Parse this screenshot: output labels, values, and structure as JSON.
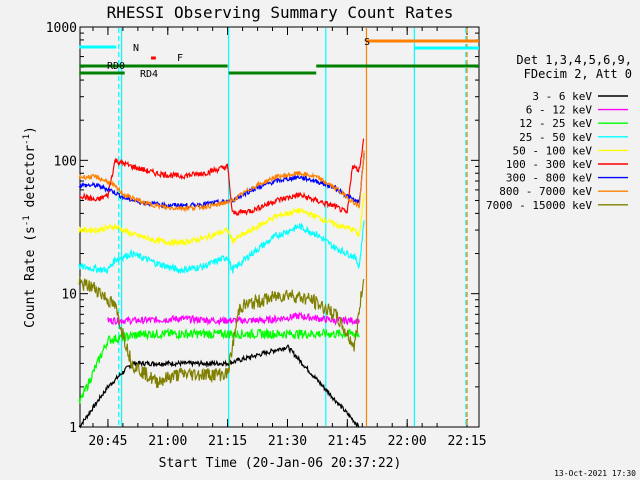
{
  "chart_data": {
    "type": "line",
    "title": "RHESSI Observing Summary Count Rates",
    "xlabel": "Start Time (20-Jan-06 20:37:22)",
    "ylabel": "Count Rate (s⁻¹ detector⁻¹)",
    "ylabel_main": "Count Rate (s",
    "ylabel_sup1": "-1",
    "ylabel_mid": " detector",
    "ylabel_sup2": "-1",
    "ylabel_end": ")",
    "yscale": "log",
    "xlim_minutes": [
      20.6333,
      22.3
    ],
    "ylim": [
      1,
      1000
    ],
    "x_ticks": [
      {
        "label": "20:45",
        "hours": 20.75
      },
      {
        "label": "21:00",
        "hours": 21.0
      },
      {
        "label": "21:15",
        "hours": 21.25
      },
      {
        "label": "21:30",
        "hours": 21.5
      },
      {
        "label": "21:45",
        "hours": 21.75
      },
      {
        "label": "22:00",
        "hours": 22.0
      },
      {
        "label": "22:15",
        "hours": 22.25
      }
    ],
    "y_ticks": [
      {
        "label": "1",
        "value": 1
      },
      {
        "label": "10",
        "value": 10
      },
      {
        "label": "100",
        "value": 100
      },
      {
        "label": "1000",
        "value": 1000
      }
    ],
    "legend_title_1": "Det 1,3,4,5,6,9,",
    "legend_title_2": "FDecim 2, Att 0",
    "legend_placement": "right",
    "series": [
      {
        "name": "3 - 6 keV",
        "color": "#000000",
        "points": [
          [
            20.63,
            1
          ],
          [
            20.75,
            2
          ],
          [
            20.85,
            3
          ],
          [
            21.0,
            3
          ],
          [
            21.25,
            3
          ],
          [
            21.5,
            4
          ],
          [
            21.65,
            2
          ],
          [
            21.8,
            1
          ]
        ]
      },
      {
        "name": "6 - 12 keV",
        "color": "#ff00ff",
        "points": [
          [
            20.75,
            6.3
          ],
          [
            20.9,
            6.3
          ],
          [
            21.05,
            6.5
          ],
          [
            21.2,
            6.3
          ],
          [
            21.4,
            6.3
          ],
          [
            21.55,
            6.8
          ],
          [
            21.7,
            6.3
          ],
          [
            21.8,
            6.3
          ]
        ]
      },
      {
        "name": "12 - 25 keV",
        "color": "#00ff00",
        "points": [
          [
            20.63,
            1.5
          ],
          [
            20.75,
            4.5
          ],
          [
            20.9,
            5
          ],
          [
            21.1,
            5
          ],
          [
            21.3,
            5
          ],
          [
            21.5,
            5
          ],
          [
            21.7,
            5
          ],
          [
            21.8,
            5
          ]
        ]
      },
      {
        "name": "25 - 50 keV",
        "color": "#00ffff",
        "points": [
          [
            20.63,
            16
          ],
          [
            20.75,
            15
          ],
          [
            20.78,
            18
          ],
          [
            20.85,
            20
          ],
          [
            20.95,
            17
          ],
          [
            21.05,
            15
          ],
          [
            21.15,
            16
          ],
          [
            21.25,
            19
          ],
          [
            21.27,
            15
          ],
          [
            21.35,
            20
          ],
          [
            21.45,
            27
          ],
          [
            21.55,
            32
          ],
          [
            21.62,
            28
          ],
          [
            21.7,
            22
          ],
          [
            21.78,
            19
          ],
          [
            21.8,
            16
          ],
          [
            21.82,
            36
          ]
        ]
      },
      {
        "name": "50 - 100 keV",
        "color": "#ffff00",
        "points": [
          [
            20.63,
            30
          ],
          [
            20.7,
            30
          ],
          [
            20.78,
            32
          ],
          [
            20.85,
            28
          ],
          [
            20.95,
            25
          ],
          [
            21.05,
            24
          ],
          [
            21.15,
            26
          ],
          [
            21.25,
            30
          ],
          [
            21.27,
            25
          ],
          [
            21.35,
            30
          ],
          [
            21.45,
            38
          ],
          [
            21.55,
            42
          ],
          [
            21.62,
            38
          ],
          [
            21.7,
            33
          ],
          [
            21.78,
            30
          ],
          [
            21.8,
            27
          ],
          [
            21.82,
            55
          ]
        ]
      },
      {
        "name": "100 - 300 keV",
        "color": "#ff0000",
        "points": [
          [
            20.63,
            55
          ],
          [
            20.7,
            50
          ],
          [
            20.75,
            55
          ],
          [
            20.78,
            100
          ],
          [
            20.85,
            90
          ],
          [
            20.95,
            80
          ],
          [
            21.05,
            76
          ],
          [
            21.15,
            80
          ],
          [
            21.25,
            90
          ],
          [
            21.27,
            40
          ],
          [
            21.35,
            42
          ],
          [
            21.45,
            50
          ],
          [
            21.55,
            55
          ],
          [
            21.62,
            50
          ],
          [
            21.7,
            45
          ],
          [
            21.75,
            40
          ],
          [
            21.77,
            90
          ],
          [
            21.8,
            85
          ],
          [
            21.82,
            150
          ]
        ]
      },
      {
        "name": "300 - 800 keV",
        "color": "#0000ff",
        "points": [
          [
            20.63,
            65
          ],
          [
            20.7,
            65
          ],
          [
            20.76,
            60
          ],
          [
            20.82,
            52
          ],
          [
            20.9,
            48
          ],
          [
            21.0,
            46
          ],
          [
            21.1,
            46
          ],
          [
            21.2,
            48
          ],
          [
            21.27,
            50
          ],
          [
            21.35,
            60
          ],
          [
            21.45,
            70
          ],
          [
            21.55,
            75
          ],
          [
            21.62,
            70
          ],
          [
            21.7,
            62
          ],
          [
            21.78,
            50
          ],
          [
            21.8,
            48
          ],
          [
            21.82,
            110
          ]
        ]
      },
      {
        "name": "800 - 7000 keV",
        "color": "#ff8000",
        "points": [
          [
            20.63,
            75
          ],
          [
            20.7,
            75
          ],
          [
            20.76,
            68
          ],
          [
            20.82,
            55
          ],
          [
            20.9,
            48
          ],
          [
            21.0,
            44
          ],
          [
            21.1,
            44
          ],
          [
            21.2,
            46
          ],
          [
            21.27,
            50
          ],
          [
            21.35,
            62
          ],
          [
            21.45,
            75
          ],
          [
            21.55,
            80
          ],
          [
            21.62,
            75
          ],
          [
            21.7,
            62
          ],
          [
            21.78,
            48
          ],
          [
            21.8,
            45
          ],
          [
            21.82,
            115
          ]
        ]
      },
      {
        "name": "7000 - 15000 keV",
        "color": "#808000",
        "points": [
          [
            20.63,
            12
          ],
          [
            20.7,
            11
          ],
          [
            20.78,
            8
          ],
          [
            20.85,
            3
          ],
          [
            20.95,
            2.2
          ],
          [
            21.05,
            2.5
          ],
          [
            21.15,
            2.5
          ],
          [
            21.25,
            2.5
          ],
          [
            21.3,
            8
          ],
          [
            21.4,
            9
          ],
          [
            21.5,
            10
          ],
          [
            21.6,
            9
          ],
          [
            21.7,
            7
          ],
          [
            21.78,
            4
          ],
          [
            21.82,
            14
          ]
        ]
      }
    ],
    "flag_labels": [
      {
        "text": "N",
        "color": "#00ffff"
      },
      {
        "text": "F",
        "color": "#ff0000"
      },
      {
        "text": "RD0",
        "color": "#008000"
      },
      {
        "text": "RD4",
        "color": "#008000"
      },
      {
        "text": "S",
        "color": "#ff8000"
      }
    ]
  },
  "timestamp": "13-Oct-2021 17:30"
}
